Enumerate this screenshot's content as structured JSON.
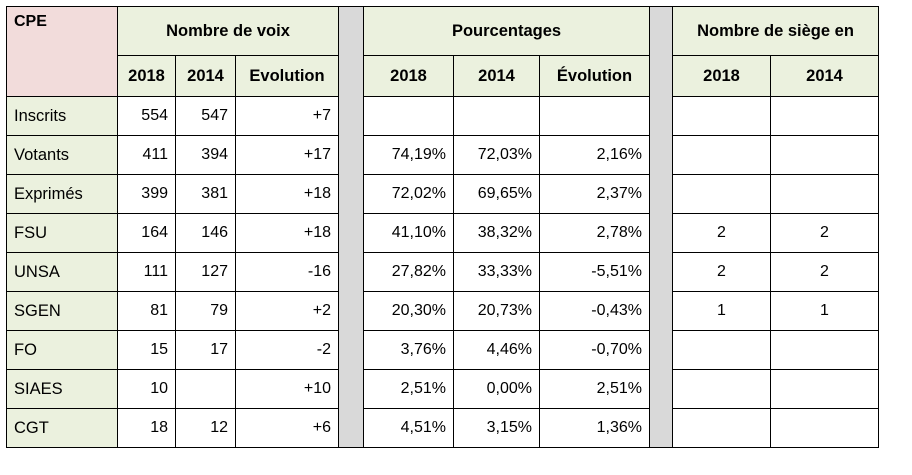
{
  "table_title": "CPE",
  "group_headers": {
    "votes": "Nombre de voix",
    "percent": "Pourcentages",
    "seats": "Nombre de siège en"
  },
  "sub_headers": {
    "votes": [
      "2018",
      "2014",
      "Evolution"
    ],
    "percent": [
      "2018",
      "2014",
      "Évolution"
    ],
    "seats": [
      "2018",
      "2014"
    ]
  },
  "rows": [
    {
      "label": "Inscrits",
      "v2018": "554",
      "v2014": "547",
      "vevo": "+7",
      "p2018": "",
      "p2014": "",
      "pevo": "",
      "s2018": "",
      "s2014": ""
    },
    {
      "label": "Votants",
      "v2018": "411",
      "v2014": "394",
      "vevo": "+17",
      "p2018": "74,19%",
      "p2014": "72,03%",
      "pevo": "2,16%",
      "s2018": "",
      "s2014": ""
    },
    {
      "label": "Exprimés",
      "v2018": "399",
      "v2014": "381",
      "vevo": "+18",
      "p2018": "72,02%",
      "p2014": "69,65%",
      "pevo": "2,37%",
      "s2018": "",
      "s2014": ""
    },
    {
      "label": "FSU",
      "v2018": "164",
      "v2014": "146",
      "vevo": "+18",
      "p2018": "41,10%",
      "p2014": "38,32%",
      "pevo": "2,78%",
      "s2018": "2",
      "s2014": "2"
    },
    {
      "label": "UNSA",
      "v2018": "111",
      "v2014": "127",
      "vevo": "-16",
      "p2018": "27,82%",
      "p2014": "33,33%",
      "pevo": "-5,51%",
      "s2018": "2",
      "s2014": "2"
    },
    {
      "label": "SGEN",
      "v2018": "81",
      "v2014": "79",
      "vevo": "+2",
      "p2018": "20,30%",
      "p2014": "20,73%",
      "pevo": "-0,43%",
      "s2018": "1",
      "s2014": "1"
    },
    {
      "label": "FO",
      "v2018": "15",
      "v2014": "17",
      "vevo": "-2",
      "p2018": "3,76%",
      "p2014": "4,46%",
      "pevo": "-0,70%",
      "s2018": "",
      "s2014": ""
    },
    {
      "label": "SIAES",
      "v2018": "10",
      "v2014": "",
      "vevo": "+10",
      "p2018": "2,51%",
      "p2014": "0,00%",
      "pevo": "2,51%",
      "s2018": "",
      "s2014": ""
    },
    {
      "label": "CGT",
      "v2018": "18",
      "v2014": "12",
      "vevo": "+6",
      "p2018": "4,51%",
      "p2014": "3,15%",
      "pevo": "1,36%",
      "s2018": "",
      "s2014": ""
    }
  ]
}
